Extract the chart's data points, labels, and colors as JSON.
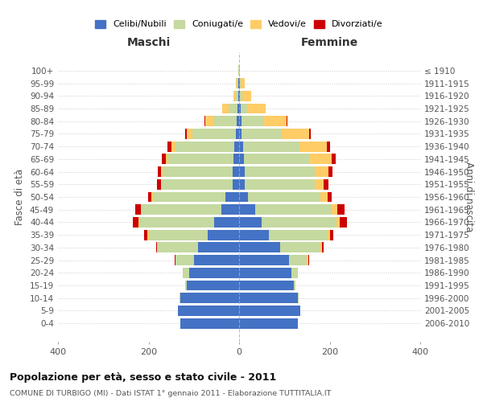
{
  "age_groups": [
    "0-4",
    "5-9",
    "10-14",
    "15-19",
    "20-24",
    "25-29",
    "30-34",
    "35-39",
    "40-44",
    "45-49",
    "50-54",
    "55-59",
    "60-64",
    "65-69",
    "70-74",
    "75-79",
    "80-84",
    "85-89",
    "90-94",
    "95-99",
    "100+"
  ],
  "birth_years": [
    "2006-2010",
    "2001-2005",
    "1996-2000",
    "1991-1995",
    "1986-1990",
    "1981-1985",
    "1976-1980",
    "1971-1975",
    "1966-1970",
    "1961-1965",
    "1956-1960",
    "1951-1955",
    "1946-1950",
    "1941-1945",
    "1936-1940",
    "1931-1935",
    "1926-1930",
    "1921-1925",
    "1916-1920",
    "1911-1915",
    "≤ 1910"
  ],
  "maschi_celibe": [
    130,
    135,
    130,
    115,
    110,
    100,
    90,
    70,
    55,
    40,
    30,
    15,
    14,
    12,
    10,
    8,
    5,
    3,
    2,
    2,
    0
  ],
  "maschi_coniugato": [
    0,
    0,
    2,
    5,
    15,
    40,
    90,
    130,
    165,
    175,
    160,
    155,
    155,
    145,
    130,
    95,
    50,
    20,
    5,
    3,
    1
  ],
  "maschi_vedovo": [
    0,
    0,
    0,
    0,
    0,
    0,
    1,
    2,
    2,
    2,
    3,
    2,
    3,
    5,
    10,
    12,
    20,
    15,
    5,
    2,
    0
  ],
  "maschi_divorziato": [
    0,
    0,
    0,
    0,
    0,
    2,
    3,
    8,
    12,
    12,
    8,
    10,
    8,
    8,
    8,
    5,
    1,
    0,
    0,
    0,
    0
  ],
  "femmine_celibe": [
    130,
    135,
    130,
    120,
    115,
    110,
    90,
    65,
    50,
    35,
    20,
    12,
    12,
    10,
    8,
    5,
    5,
    3,
    2,
    2,
    0
  ],
  "femmine_coniugato": [
    0,
    0,
    2,
    5,
    15,
    40,
    90,
    130,
    165,
    170,
    160,
    155,
    155,
    145,
    125,
    90,
    50,
    15,
    5,
    2,
    0
  ],
  "femmine_vedovo": [
    0,
    0,
    0,
    0,
    0,
    2,
    3,
    5,
    8,
    12,
    15,
    20,
    30,
    50,
    60,
    60,
    50,
    40,
    20,
    8,
    2
  ],
  "femmine_divorziato": [
    0,
    0,
    0,
    0,
    0,
    2,
    3,
    8,
    15,
    15,
    10,
    10,
    10,
    8,
    8,
    3,
    1,
    0,
    0,
    0,
    0
  ],
  "colors": {
    "celibe": "#4472C4",
    "coniugato": "#C5D9A0",
    "vedovo": "#FFCC66",
    "divorziato": "#CC0000"
  },
  "legend_labels": [
    "Celibi/Nubili",
    "Coniugati/e",
    "Vedovi/e",
    "Divorziati/e"
  ],
  "title": "Popolazione per età, sesso e stato civile - 2011",
  "subtitle": "COMUNE DI TURBIGO (MI) - Dati ISTAT 1° gennaio 2011 - Elaborazione TUTTITALIA.IT",
  "ylabel_left": "Fasce di età",
  "ylabel_right": "Anni di nascita",
  "xlabel_maschi": "Maschi",
  "xlabel_femmine": "Femmine",
  "xlim": 400,
  "background_color": "#ffffff",
  "grid_color": "#cccccc"
}
